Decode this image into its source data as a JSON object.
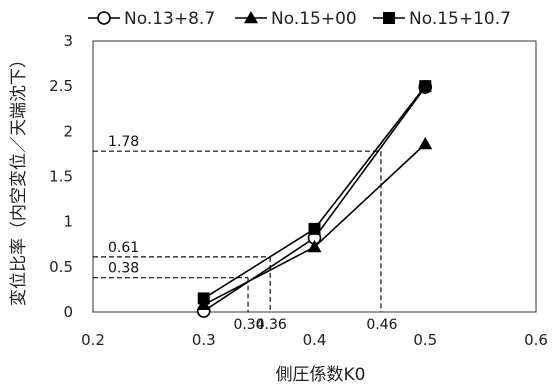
{
  "chart_data": {
    "type": "line",
    "xlabel": "側圧係数K0",
    "ylabel": "変位比率（内空変位／天端沈下）",
    "xlim": [
      0.2,
      0.6
    ],
    "ylim": [
      0,
      3
    ],
    "x_ticks": [
      "0.2",
      "0.3",
      "0.4",
      "0.5",
      "0.6"
    ],
    "y_ticks": [
      "0",
      "0.5",
      "1",
      "1.5",
      "2",
      "2.5",
      "3"
    ],
    "grid": false,
    "legend_position": "top",
    "series": [
      {
        "name": "No.13+8.7",
        "marker": "circle-open",
        "x": [
          0.3,
          0.4,
          0.5
        ],
        "y": [
          0.01,
          0.82,
          2.49
        ]
      },
      {
        "name": "No.15+00",
        "marker": "triangle",
        "x": [
          0.3,
          0.4,
          0.5
        ],
        "y": [
          0.08,
          0.72,
          1.86
        ]
      },
      {
        "name": "No.15+10.7",
        "marker": "square",
        "x": [
          0.3,
          0.4,
          0.5
        ],
        "y": [
          0.15,
          0.92,
          2.5
        ]
      }
    ],
    "reference_lines": [
      {
        "x": 0.34,
        "y": 0.38,
        "x_label": "0.34",
        "y_label": "0.38"
      },
      {
        "x": 0.36,
        "y": 0.61,
        "x_label": "0.36",
        "y_label": "0.61"
      },
      {
        "x": 0.46,
        "y": 1.78,
        "x_label": "0.46",
        "y_label": "1.78"
      }
    ]
  }
}
